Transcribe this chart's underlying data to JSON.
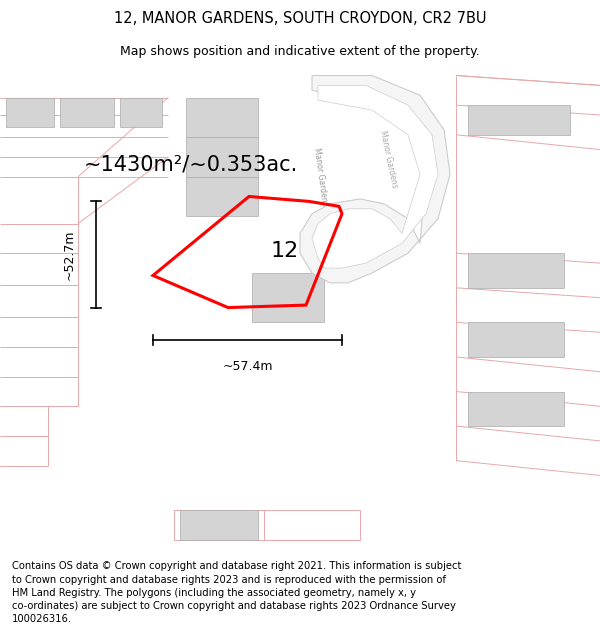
{
  "title_line1": "12, MANOR GARDENS, SOUTH CROYDON, CR2 7BU",
  "title_line2": "Map shows position and indicative extent of the property.",
  "footer_text": "Contains OS data © Crown copyright and database right 2021. This information is subject to Crown copyright and database rights 2023 and is reproduced with the permission of HM Land Registry. The polygons (including the associated geometry, namely x, y co-ordinates) are subject to Crown copyright and database rights 2023 Ordnance Survey 100026316.",
  "bg_color": "#ffffff",
  "map_bg_color": "#ffffff",
  "plot_color": "#ff0000",
  "building_fill": "#d4d4d4",
  "building_edge": "#aaaaaa",
  "road_line_color": "#e8a8a8",
  "road_fill_color": "#f0f0f0",
  "road_edge_color": "#bbbbbb",
  "area_text": "~1430m²/~0.353ac.",
  "width_text": "~57.4m",
  "height_text": "~52.7m",
  "number_text": "12",
  "title_fontsize": 10.5,
  "subtitle_fontsize": 9,
  "footer_fontsize": 7.2,
  "area_fontsize": 15,
  "number_fontsize": 16,
  "dim_fontsize": 9,
  "road_label": "Manor Gardens",
  "road_label2": "Manor Gardens"
}
